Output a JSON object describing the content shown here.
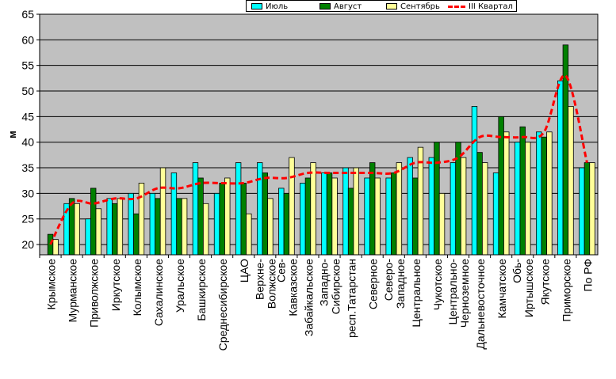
{
  "chart_data": {
    "type": "bar",
    "ylabel": "м",
    "ylim": [
      18,
      65
    ],
    "yticks": [
      20,
      25,
      30,
      35,
      40,
      45,
      50,
      55,
      60,
      65
    ],
    "grid": "horizontal",
    "legend_position": "top",
    "categories": [
      "Крымское",
      "Мурманское",
      "Приволжское",
      "Иркутское",
      "Колымское",
      "Сахалинское",
      "Уральское",
      "Башкирское",
      "Среднесибирское",
      "ЦАО",
      "Верхне-Волжское",
      "Сев-Кавказское",
      "Забайкальское",
      "Западно-Сибирское",
      "респ.Татарстан",
      "Северное",
      "Северо-Западное",
      "Центральное",
      "Чукотское",
      "Центрально-Черноземное",
      "Дальневосточное",
      "Камчатское",
      "Обь-Иртышское",
      "Якутское",
      "Приморское",
      "По РФ"
    ],
    "category_lines": [
      [
        "Крымское"
      ],
      [
        "Мурманское"
      ],
      [
        "Приволжское"
      ],
      [
        "Иркутское"
      ],
      [
        "Колымское"
      ],
      [
        "Сахалинское"
      ],
      [
        "Уральское"
      ],
      [
        "Башкирское"
      ],
      [
        "Среднесибирское"
      ],
      [
        "ЦАО"
      ],
      [
        "Верхне-",
        "Волжское"
      ],
      [
        "Сев-",
        "Кавказское"
      ],
      [
        "Забайкальское"
      ],
      [
        "Западно-",
        "Сибирское"
      ],
      [
        "респ.Татарстан"
      ],
      [
        "Северное"
      ],
      [
        "Северо-",
        "Западное"
      ],
      [
        "Центральное"
      ],
      [
        "Чукотское"
      ],
      [
        "Центрально-",
        "Черноземное"
      ],
      [
        "Дальневосточное"
      ],
      [
        "Камчатское"
      ],
      [
        "Обь-",
        "Иртышское"
      ],
      [
        "Якутское"
      ],
      [
        "Приморское"
      ],
      [
        "По РФ"
      ]
    ],
    "series": [
      {
        "name": "Июль",
        "type": "bar",
        "color": "#00ffff",
        "values": [
          18,
          28,
          25,
          29,
          30,
          30,
          34,
          36,
          30,
          36,
          36,
          31,
          32,
          34,
          35,
          33,
          33,
          37,
          37,
          36,
          47,
          34,
          40,
          42,
          52,
          35
        ]
      },
      {
        "name": "Август",
        "type": "bar",
        "color": "#008000",
        "values": [
          22,
          29,
          31,
          28,
          26,
          29,
          29,
          33,
          32,
          32,
          34,
          30,
          33,
          34,
          31,
          36,
          34,
          33,
          40,
          40,
          38,
          45,
          43,
          41,
          59,
          36
        ]
      },
      {
        "name": "Сентябрь",
        "type": "bar",
        "color": "#ffff99",
        "values": [
          21,
          28,
          27,
          29,
          32,
          35,
          29,
          28,
          33,
          26,
          29,
          37,
          36,
          33,
          35,
          33,
          36,
          39,
          30,
          37,
          36,
          42,
          40,
          42,
          47,
          36
        ]
      },
      {
        "name": "III Квартал",
        "type": "line",
        "color": "#ff0000",
        "values": [
          20,
          28,
          28,
          29,
          29,
          31,
          31,
          32,
          32,
          32,
          33,
          33,
          34,
          34,
          34,
          34,
          34,
          36,
          36,
          37,
          41,
          41,
          41,
          42,
          53,
          36
        ]
      }
    ]
  }
}
